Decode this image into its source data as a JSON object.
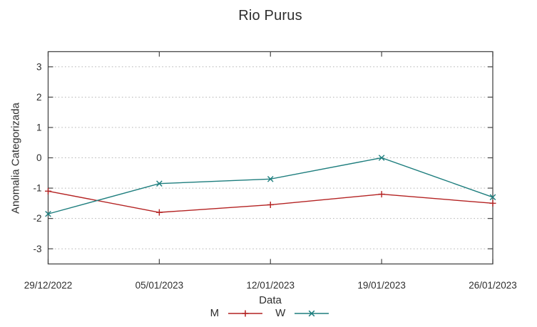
{
  "chart_data": {
    "type": "line",
    "title": "Rio Purus",
    "xlabel": "Data",
    "ylabel": "Anomalia Categorizada",
    "categories": [
      "29/12/2022",
      "05/01/2023",
      "12/01/2023",
      "19/01/2023",
      "26/01/2023"
    ],
    "y_ticks": [
      -3,
      -2,
      -1,
      0,
      1,
      2,
      3
    ],
    "ylim": [
      -3.5,
      3.5
    ],
    "grid": "horizontal-dotted",
    "legend_position": "bottom-center",
    "series": [
      {
        "name": "M",
        "color": "#b42222",
        "marker": "plus",
        "values": [
          -1.1,
          -1.8,
          -1.55,
          -1.2,
          -1.5
        ]
      },
      {
        "name": "W",
        "color": "#1e7e7e",
        "marker": "cross",
        "values": [
          -1.85,
          -0.85,
          -0.7,
          0.0,
          -1.3
        ]
      }
    ],
    "colors": {
      "axis": "#474747",
      "grid": "#b5b5b5",
      "text": "#2e2e2e"
    }
  }
}
